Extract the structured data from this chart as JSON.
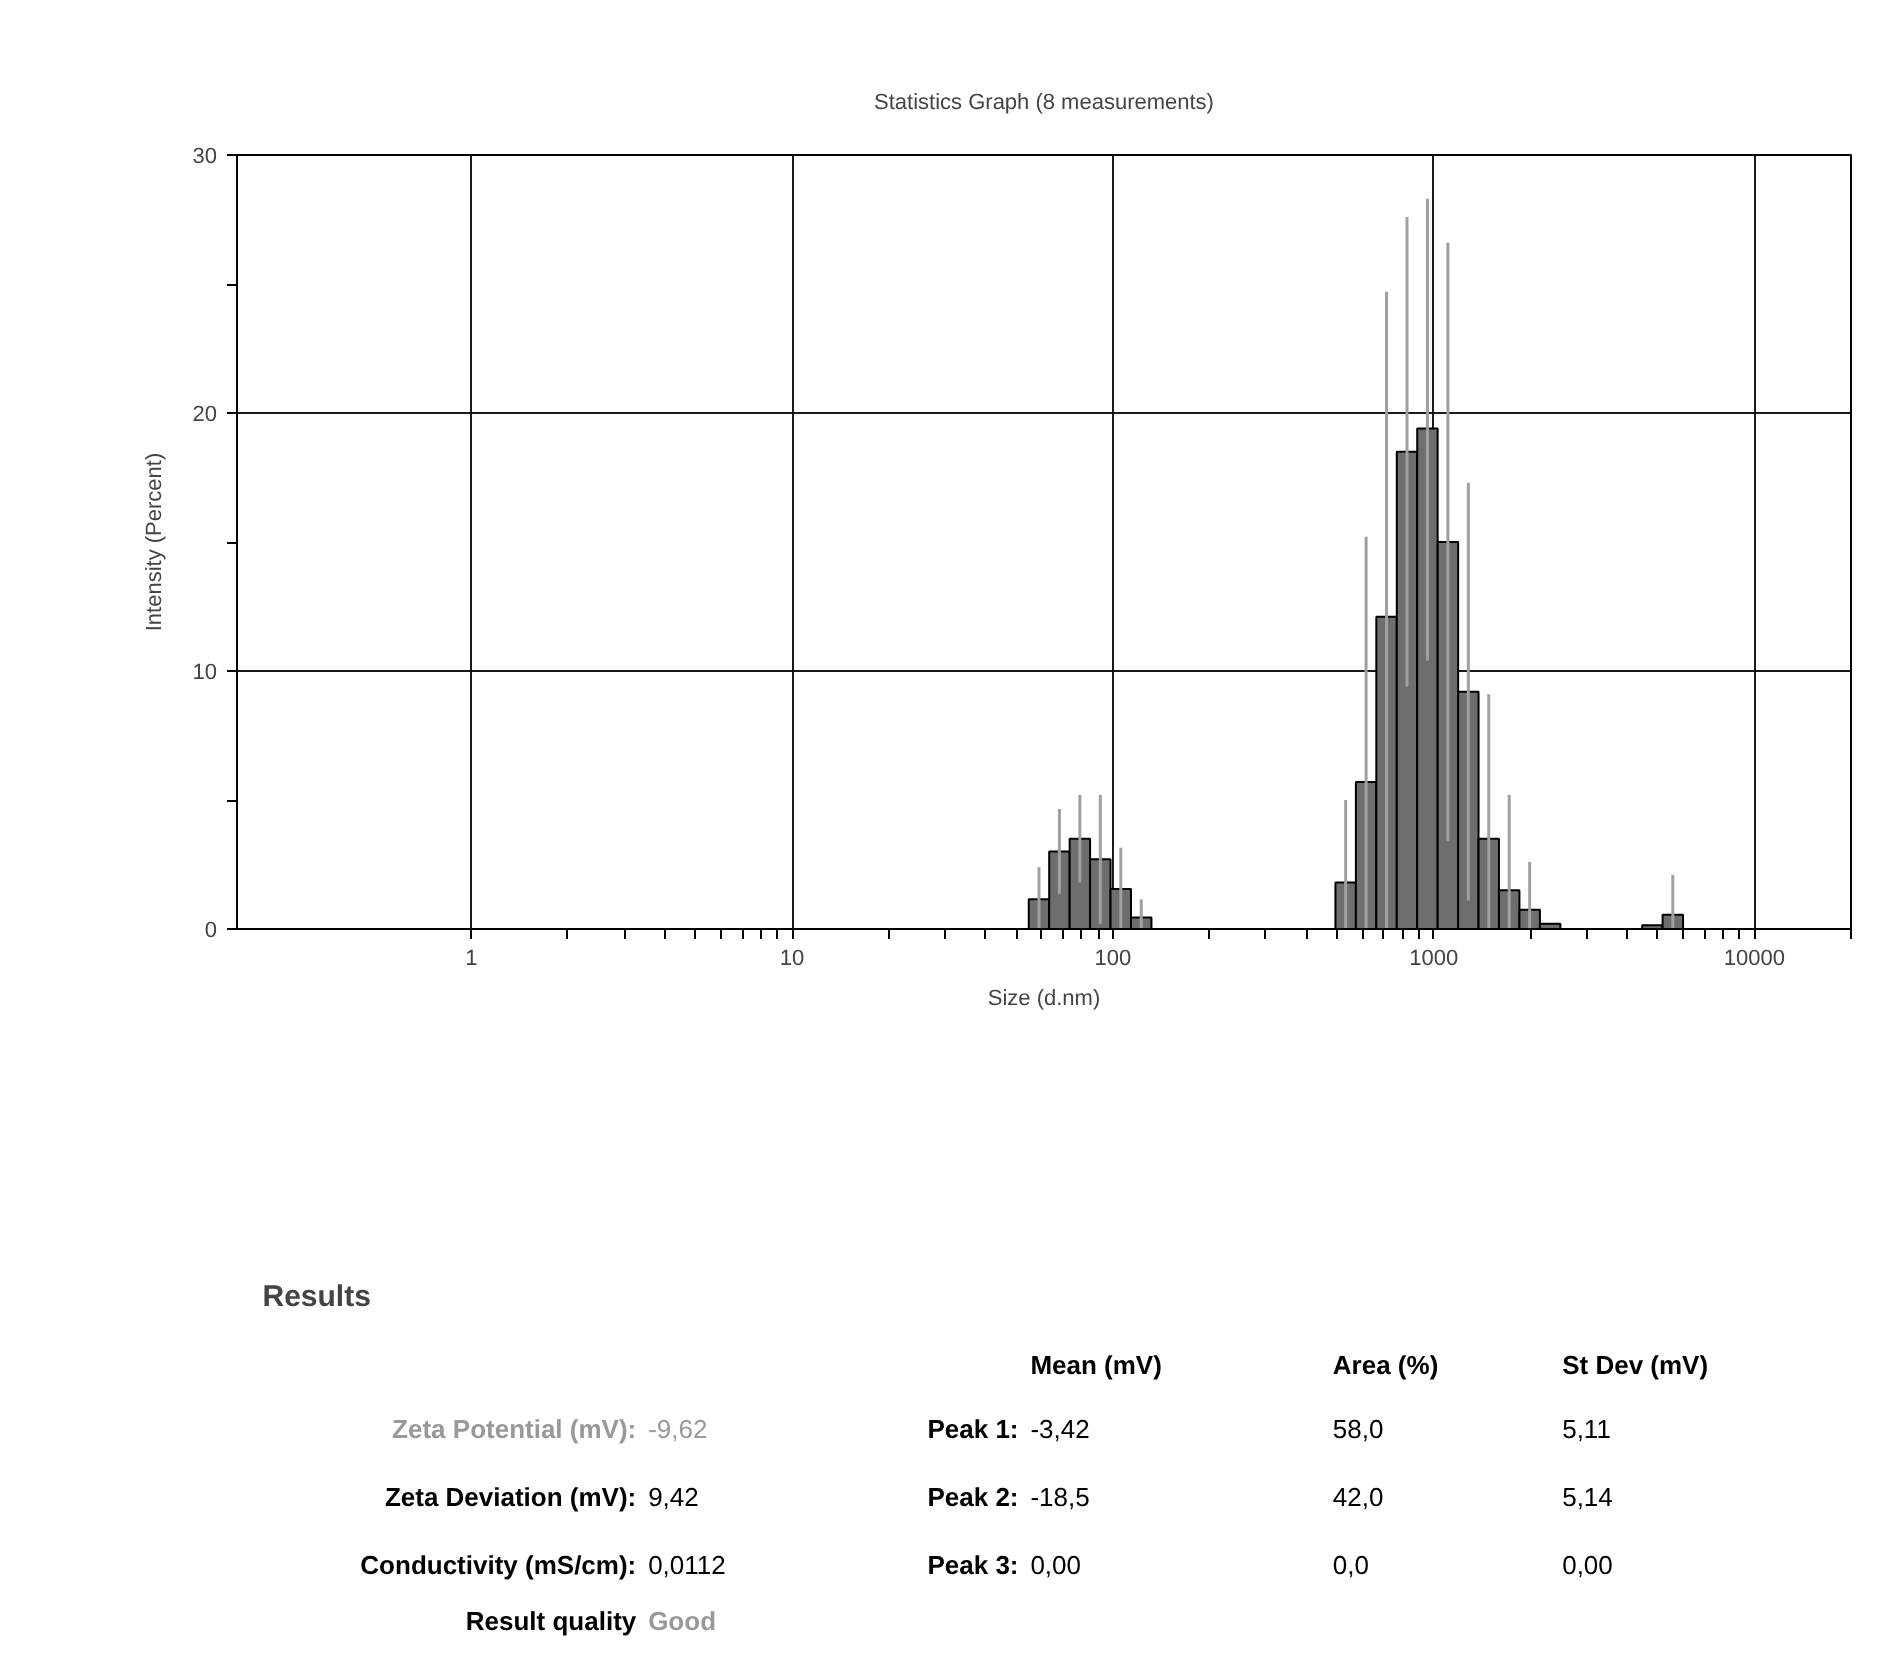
{
  "chart_data": {
    "type": "histogram",
    "title": "Statistics Graph (8 measurements)",
    "xlabel": "Size (d.nm)",
    "ylabel": "Intensity (Percent)",
    "log": "x",
    "color": "#6e6e6e",
    "bins": [
      54.67,
      63.31,
      73.32,
      84.91,
      98.33,
      113.9,
      131.9,
      152.7,
      176.8,
      204.8,
      237.2,
      274.7,
      318.1,
      368.5,
      426.7,
      494.1,
      572.2,
      662.6,
      767.4,
      888.7,
      1029,
      1192,
      1380,
      1598,
      1851,
      2144,
      2483,
      2875,
      3330,
      3856,
      4466,
      5172,
      5990
    ],
    "values": [
      1.15,
      3.0,
      3.5,
      2.7,
      1.55,
      0.45,
      0,
      0,
      0,
      0,
      0,
      0,
      0,
      0,
      0,
      1.8,
      5.7,
      12.1,
      18.5,
      19.4,
      15.0,
      9.2,
      3.5,
      1.5,
      0.75,
      0.2,
      null,
      0,
      0,
      null,
      0.15,
      0.55
    ],
    "errors": [
      [
        0,
        2.4
      ],
      [
        1.35,
        4.65
      ],
      [
        1.8,
        5.2
      ],
      [
        0.2,
        5.2
      ],
      [
        0,
        3.15
      ],
      [
        0,
        1.15
      ],
      null,
      null,
      null,
      null,
      null,
      null,
      null,
      null,
      null,
      [
        0,
        5.0
      ],
      [
        0,
        15.2
      ],
      [
        0,
        24.7
      ],
      [
        9.4,
        27.6
      ],
      [
        10.4,
        28.3
      ],
      [
        3.4,
        26.6
      ],
      [
        1.1,
        17.3
      ],
      [
        0,
        9.1
      ],
      [
        0,
        5.2
      ],
      [
        0,
        2.6
      ],
      null,
      null,
      null,
      null,
      null,
      null,
      [
        0,
        2.1
      ]
    ],
    "xlim": [
      0.186,
      20000
    ],
    "xticks": [
      1,
      {
        "value": 2,
        "label": null
      },
      {
        "value": 3,
        "label": null
      },
      {
        "value": 4,
        "label": null
      },
      {
        "value": 5,
        "label": null
      },
      {
        "value": 6,
        "label": null
      },
      {
        "value": 7,
        "label": null
      },
      {
        "value": 8,
        "label": null
      },
      {
        "value": 9,
        "label": null
      },
      10,
      {
        "value": 20,
        "label": null
      },
      {
        "value": 30,
        "label": null
      },
      {
        "value": 40,
        "label": null
      },
      {
        "value": 50,
        "label": null
      },
      {
        "value": 60,
        "label": null
      },
      {
        "value": 70,
        "label": null
      },
      {
        "value": 80,
        "label": null
      },
      {
        "value": 90,
        "label": null
      },
      100,
      {
        "value": 200,
        "label": null
      },
      {
        "value": 300,
        "label": null
      },
      {
        "value": 400,
        "label": null
      },
      {
        "value": 500,
        "label": null
      },
      {
        "value": 600,
        "label": null
      },
      {
        "value": 700,
        "label": null
      },
      {
        "value": 800,
        "label": null
      },
      {
        "value": 900,
        "label": null
      },
      1000,
      {
        "value": 2000,
        "label": null
      },
      {
        "value": 3000,
        "label": null
      },
      {
        "value": 4000,
        "label": null
      },
      {
        "value": 5000,
        "label": null
      },
      {
        "value": 6000,
        "label": null
      },
      {
        "value": 7000,
        "label": null
      },
      {
        "value": 8000,
        "label": null
      },
      {
        "value": 9000,
        "label": null
      },
      10000,
      {
        "value": 20000,
        "label": null
      }
    ],
    "ylim": [
      0,
      30
    ],
    "yticks": [
      0,
      {
        "value": 5,
        "label": null
      },
      10,
      {
        "value": 15,
        "label": null
      },
      20,
      {
        "value": 25,
        "label": null
      },
      30
    ],
    "grid": true,
    "annotations": [
      "Results",
      "Mean (mV)",
      "Area (%)",
      "St Dev (mV)",
      "Zeta Potential (mV):",
      "-9,62",
      "Peak 1:",
      "-3,42",
      "58,0",
      "5,11",
      "Zeta Deviation (mV):",
      "9,42",
      "Peak 2:",
      "-18,5",
      "42,0",
      "5,14",
      "Conductivity (mS/cm):",
      "0,0112",
      "Peak 3:",
      "0,00",
      "0,0",
      "0,00",
      "Result quality",
      "Good"
    ]
  }
}
